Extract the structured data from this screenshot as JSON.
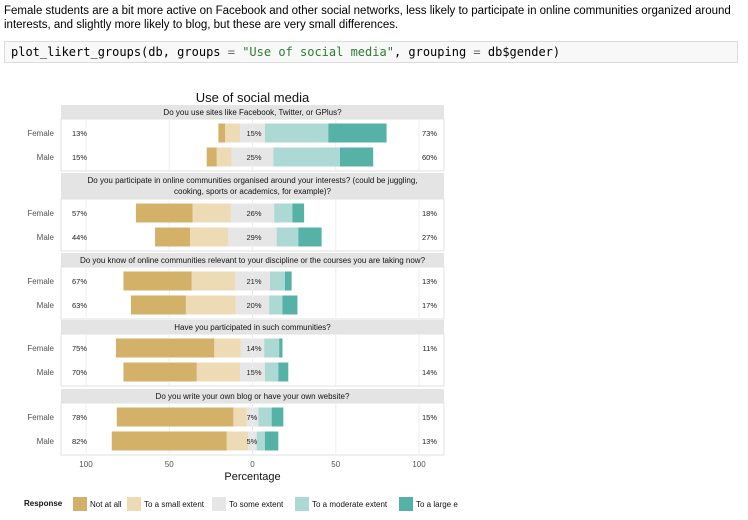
{
  "intro_text": "Female students are a bit more active on Facebook and other social networks, less likely to participate in online communities organized around interests, and slightly more likely to blog, but these are very small differences.",
  "code": {
    "fn": "plot_likert_groups(db, groups ",
    "eq1": "=",
    "str": " \"Use of social media\"",
    "mid": ", grouping ",
    "eq2": "=",
    "end": " db$gender)"
  },
  "colors": [
    "#d4b168",
    "#ecdbb4",
    "#e6e6e6",
    "#acd9d3",
    "#56b2a6"
  ],
  "chart_data": {
    "type": "bar",
    "title": "Use of social media",
    "xlabel": "Percentage",
    "ylabel": "",
    "xlim": [
      -100,
      100
    ],
    "xticks": [
      -100,
      -50,
      0,
      50,
      100
    ],
    "tick_labels": [
      "100",
      "50",
      "0",
      "50",
      "100"
    ],
    "levels": [
      "Not at all",
      "To a small extent",
      "To some extent",
      "To a moderate extent",
      "To a large extent"
    ],
    "legend_title": "Response",
    "legend_labels": [
      "Not at all",
      "To a small extent",
      "To some extent",
      "To a moderate extent",
      "To a large e"
    ],
    "legend_position": "bottom",
    "groups": [
      "Female",
      "Male"
    ],
    "panels": [
      {
        "question": [
          "Do you use sites like Facebook, Twitter, or GPlus?"
        ],
        "rows": [
          {
            "group": "Female",
            "low": "13%",
            "neutral": "15%",
            "high": "73%",
            "values": [
              4,
              9,
              15,
              38,
              35
            ]
          },
          {
            "group": "Male",
            "low": "15%",
            "neutral": "25%",
            "high": "60%",
            "values": [
              6,
              9,
              25,
              40,
              20
            ]
          }
        ]
      },
      {
        "question": [
          "Do you participate in online communities organised around your interests? (could be juggling,",
          "cooking, sports or academics, for example)?"
        ],
        "rows": [
          {
            "group": "Female",
            "low": "57%",
            "neutral": "26%",
            "high": "18%",
            "values": [
              34,
              23,
              26,
              11,
              7
            ]
          },
          {
            "group": "Male",
            "low": "44%",
            "neutral": "29%",
            "high": "27%",
            "values": [
              21,
              23,
              29,
              13,
              14
            ]
          }
        ]
      },
      {
        "question": [
          "Do you know of online communities relevant to your discipline or the courses you are taking now?"
        ],
        "rows": [
          {
            "group": "Female",
            "low": "67%",
            "neutral": "21%",
            "high": "13%",
            "values": [
              41,
              26,
              21,
              9,
              4
            ]
          },
          {
            "group": "Male",
            "low": "63%",
            "neutral": "20%",
            "high": "17%",
            "values": [
              33,
              30,
              20,
              8,
              9
            ]
          }
        ]
      },
      {
        "question": [
          "Have you participated in such communities?"
        ],
        "rows": [
          {
            "group": "Female",
            "low": "75%",
            "neutral": "14%",
            "high": "11%",
            "values": [
              59,
              16,
              14,
              9,
              2
            ]
          },
          {
            "group": "Male",
            "low": "70%",
            "neutral": "15%",
            "high": "14%",
            "values": [
              44,
              26,
              15,
              8,
              6
            ]
          }
        ]
      },
      {
        "question": [
          "Do you write your own blog or have your own website?"
        ],
        "rows": [
          {
            "group": "Female",
            "low": "78%",
            "neutral": "7%",
            "high": "15%",
            "values": [
              70,
              8,
              7,
              8,
              7
            ]
          },
          {
            "group": "Male",
            "low": "82%",
            "neutral": "5%",
            "high": "13%",
            "values": [
              69,
              13,
              5,
              5,
              8
            ]
          }
        ]
      }
    ]
  }
}
